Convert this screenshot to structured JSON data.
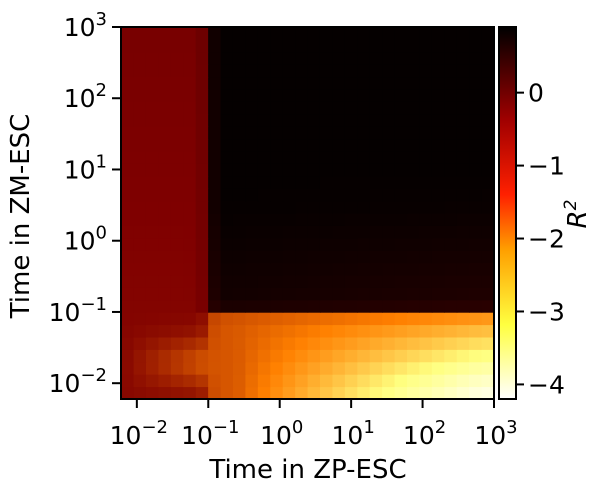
{
  "chart_data": {
    "type": "heatmap",
    "title": "",
    "xlabel": "Time in ZP-ESC",
    "ylabel": "Time in ZM-ESC",
    "x_scale": "log",
    "y_scale": "log",
    "xlim": [
      0.006,
      1000
    ],
    "ylim": [
      0.006,
      1000
    ],
    "x_ticks": [
      {
        "base": "10",
        "exp": "−2",
        "value": 0.01
      },
      {
        "base": "10",
        "exp": "−1",
        "value": 0.1
      },
      {
        "base": "10",
        "exp": "0",
        "value": 1
      },
      {
        "base": "10",
        "exp": "1",
        "value": 10
      },
      {
        "base": "10",
        "exp": "2",
        "value": 100
      },
      {
        "base": "10",
        "exp": "3",
        "value": 1000
      }
    ],
    "y_ticks": [
      {
        "base": "10",
        "exp": "−2",
        "value": 0.01
      },
      {
        "base": "10",
        "exp": "−1",
        "value": 0.1
      },
      {
        "base": "10",
        "exp": "0",
        "value": 1
      },
      {
        "base": "10",
        "exp": "1",
        "value": 10
      },
      {
        "base": "10",
        "exp": "2",
        "value": 100
      },
      {
        "base": "10",
        "exp": "3",
        "value": 1000
      }
    ],
    "colorbar": {
      "label_base": "R",
      "label_sup": "2",
      "colormap": "afmhot_r",
      "min": -4.2,
      "max": 0.9,
      "ticks": [
        {
          "label": "0",
          "value": 0
        },
        {
          "label": "−1",
          "value": -1
        },
        {
          "label": "−2",
          "value": -2
        },
        {
          "label": "−3",
          "value": -3
        },
        {
          "label": "−4",
          "value": -4
        }
      ]
    },
    "grid": {
      "log10_min": -2.22,
      "log10_max": 3.0,
      "n": 30,
      "note": "cell values R^2 estimated from color; rows ordered from low to high ZM-ESC time, columns from low to high ZP-ESC time"
    },
    "key_values": {
      "left_strip_zp_below_0.1": -0.3,
      "upper_right_region": 0.85,
      "bottom_right_corner_min": -4.15,
      "band_zm_just_below_0.1_at_zp_1e3": -1.4
    }
  }
}
